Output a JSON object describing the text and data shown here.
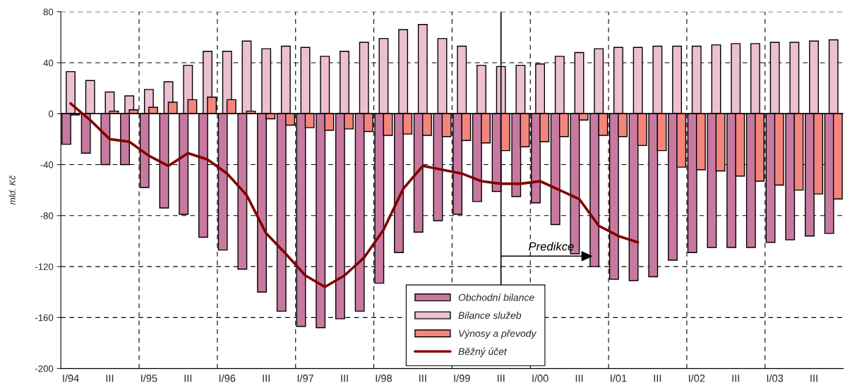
{
  "chart_data": {
    "type": "bar",
    "ylabel": "mld. Kč",
    "categories": [
      "I/94",
      null,
      "III",
      null,
      "I/95",
      null,
      "III",
      null,
      "I/96",
      null,
      "III",
      null,
      "I/97",
      null,
      "III",
      null,
      "I/98",
      null,
      "III",
      null,
      "I/99",
      null,
      "III",
      null,
      "I/00",
      null,
      "III",
      null,
      "I/01",
      null,
      "III",
      null,
      "I/02",
      null,
      "III",
      null,
      "I/03",
      null,
      "III",
      null
    ],
    "series": [
      {
        "name": "Obchodní bilance",
        "color": "#c8799f",
        "values": [
          -24,
          -31,
          -40,
          -40,
          -58,
          -74,
          -79,
          -97,
          -107,
          -122,
          -140,
          -155,
          -167,
          -168,
          -161,
          -155,
          -133,
          -109,
          -93,
          -84,
          -79,
          -69,
          -61,
          -65,
          -70,
          -87,
          -110,
          -120,
          -130,
          -131,
          -128,
          -115,
          -109,
          -105,
          -105,
          -105,
          -101,
          -99,
          -96,
          -94
        ]
      },
      {
        "name": "Bilance služeb",
        "color": "#ecc0d2",
        "values": [
          33,
          26,
          17,
          14,
          19,
          25,
          38,
          49,
          49,
          57,
          51,
          53,
          52,
          45,
          49,
          56,
          59,
          66,
          70,
          59,
          53,
          38,
          37,
          38,
          39,
          45,
          48,
          51,
          52,
          52,
          53,
          53,
          53,
          54,
          55,
          55,
          56,
          56,
          57,
          58
        ]
      },
      {
        "name": "Výnosy a převody",
        "color": "#f4857c",
        "values": [
          -1,
          null,
          2,
          3,
          5,
          9,
          11,
          13,
          11,
          2,
          -4,
          -9,
          -11,
          -13,
          -12,
          -14,
          -17,
          -16,
          -17,
          -18,
          -21,
          -23,
          -29,
          -26,
          -22,
          -18,
          -5,
          -17,
          -18,
          -25,
          -29,
          -42,
          -44,
          -45,
          -49,
          -53,
          -56,
          -60,
          -63,
          -67
        ]
      },
      {
        "name": "Běžný účet",
        "type": "line",
        "color": "#800000",
        "values": [
          8,
          -5,
          -20,
          -22,
          -33,
          -41,
          -31,
          -36,
          -47,
          -64,
          -94,
          -110,
          -127,
          -136,
          -127,
          -113,
          -91,
          -59,
          -41,
          -44,
          -47,
          -53,
          -55,
          -55,
          -53,
          -60,
          -67,
          -88,
          -96,
          -101,
          null,
          null,
          null,
          null,
          null,
          null,
          null,
          null,
          null,
          null
        ]
      }
    ],
    "ylim": [
      -200,
      80
    ],
    "yticks": [
      -200,
      -160,
      -120,
      -80,
      -40,
      0,
      40,
      80
    ],
    "grid": true,
    "legend": "bottom",
    "line_style": "solid",
    "marker": "none",
    "annotations": [
      "Predikce"
    ]
  }
}
